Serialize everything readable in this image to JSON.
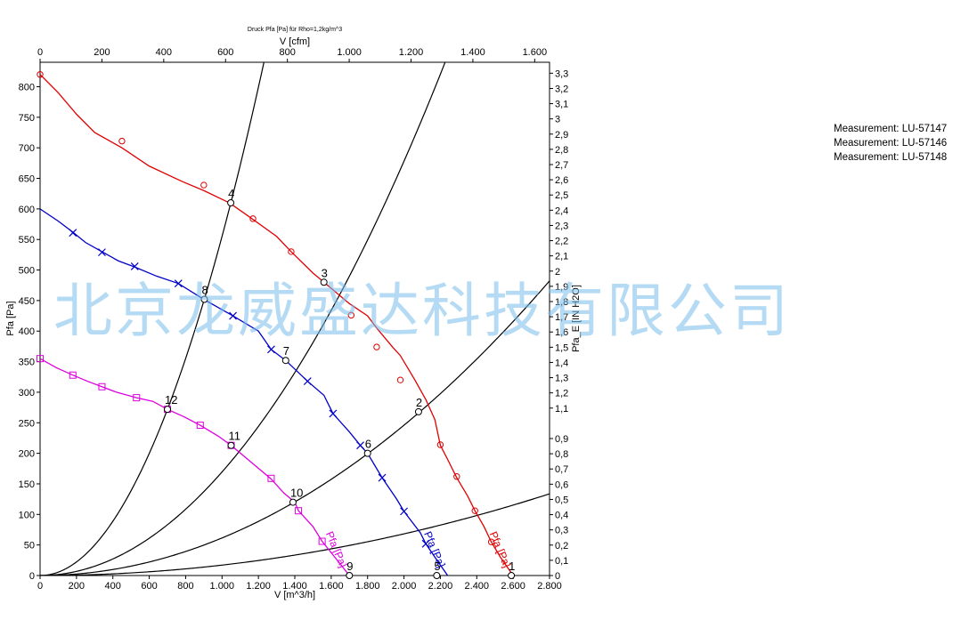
{
  "chart_data": {
    "type": "line",
    "title": "Druck Pfa [Pa] für Rho=1,2kg/m^3",
    "xlabel": "V [m^3/h]",
    "ylabel": "Pfa [Pa]",
    "x2label": "V [cfm]",
    "y2label": "Pfa_E [IN H2O]",
    "xlim": [
      0,
      2800
    ],
    "ylim": [
      0,
      840
    ],
    "x2lim": [
      0,
      1648
    ],
    "y2lim": [
      0,
      3.372
    ],
    "x_ticks": [
      0,
      200,
      400,
      600,
      800,
      1000,
      1200,
      1400,
      1600,
      1800,
      2000,
      2200,
      2400,
      2600,
      2800
    ],
    "x_tick_labels": [
      "0",
      "200",
      "400",
      "600",
      "800",
      "1.000",
      "1.200",
      "1.400",
      "1.600",
      "1.800",
      "2.000",
      "2.200",
      "2.400",
      "2.600",
      "2.800"
    ],
    "y_ticks": [
      0,
      50,
      100,
      150,
      200,
      250,
      300,
      350,
      400,
      450,
      500,
      550,
      600,
      650,
      700,
      750,
      800
    ],
    "x2_ticks": [
      0,
      200,
      400,
      600,
      800,
      1000,
      1200,
      1400,
      1600
    ],
    "x2_tick_labels": [
      "0",
      "200",
      "400",
      "600",
      "800",
      "1.000",
      "1.200",
      "1.400",
      "1.600"
    ],
    "y2_ticks": [
      0,
      0.1,
      0.2,
      0.3,
      0.4,
      0.5,
      0.6,
      0.7,
      0.8,
      0.9,
      1.1,
      1.2,
      1.3,
      1.4,
      1.5,
      1.6,
      1.7,
      1.8,
      1.9,
      2.0,
      2.1,
      2.2,
      2.3,
      2.4,
      2.5,
      2.6,
      2.7,
      2.8,
      2.9,
      3.0,
      3.1,
      3.2,
      3.3
    ],
    "y2_tick_labels": [
      "0",
      "0,1",
      "0,2",
      "0,3",
      "0,4",
      "0,5",
      "0,6",
      "0,7",
      "0,8",
      "0,9",
      "1,1",
      "1,2",
      "1,3",
      "1,4",
      "1,5",
      "1,6",
      "1,7",
      "1,8",
      "1,9",
      "2",
      "2,1",
      "2,2",
      "2,3",
      "2,4",
      "2,5",
      "2,6",
      "2,7",
      "2,8",
      "2,9",
      "3",
      "3,1",
      "3,2",
      "3,3"
    ],
    "grid": false,
    "series": [
      {
        "name": "Pfa [Pa]",
        "color": "#e00000",
        "marker": "circle",
        "line": [
          [
            0,
            820
          ],
          [
            100,
            790
          ],
          [
            200,
            755
          ],
          [
            300,
            725
          ],
          [
            450,
            700
          ],
          [
            600,
            670
          ],
          [
            780,
            645
          ],
          [
            900,
            630
          ],
          [
            1040,
            610
          ],
          [
            1160,
            585
          ],
          [
            1300,
            555
          ],
          [
            1380,
            530
          ],
          [
            1500,
            495
          ],
          [
            1560,
            480
          ],
          [
            1700,
            445
          ],
          [
            1800,
            425
          ],
          [
            1850,
            405
          ],
          [
            1940,
            373
          ],
          [
            1980,
            360
          ],
          [
            2060,
            320
          ],
          [
            2120,
            288
          ],
          [
            2170,
            255
          ],
          [
            2200,
            213
          ],
          [
            2240,
            190
          ],
          [
            2290,
            160
          ],
          [
            2350,
            130
          ],
          [
            2390,
            106
          ],
          [
            2440,
            80
          ],
          [
            2480,
            55
          ],
          [
            2530,
            30
          ],
          [
            2600,
            0
          ]
        ],
        "markers": [
          [
            0,
            820
          ],
          [
            450,
            711
          ],
          [
            900,
            639
          ],
          [
            1170,
            584
          ],
          [
            1380,
            530
          ],
          [
            1710,
            426
          ],
          [
            1850,
            374
          ],
          [
            1980,
            320
          ],
          [
            2200,
            214
          ],
          [
            2290,
            162
          ],
          [
            2390,
            106
          ],
          [
            2480,
            55
          ]
        ]
      },
      {
        "name": "Pfa [Pa]",
        "color": "#0000c8",
        "marker": "x",
        "line": [
          [
            0,
            600
          ],
          [
            100,
            580
          ],
          [
            180,
            562
          ],
          [
            250,
            545
          ],
          [
            340,
            530
          ],
          [
            430,
            515
          ],
          [
            520,
            505
          ],
          [
            640,
            490
          ],
          [
            760,
            478
          ],
          [
            900,
            452
          ],
          [
            1060,
            425
          ],
          [
            1200,
            400
          ],
          [
            1270,
            370
          ],
          [
            1350,
            352
          ],
          [
            1470,
            318
          ],
          [
            1560,
            295
          ],
          [
            1610,
            265
          ],
          [
            1700,
            235
          ],
          [
            1760,
            213
          ],
          [
            1800,
            200
          ],
          [
            1880,
            160
          ],
          [
            1960,
            125
          ],
          [
            2000,
            105
          ],
          [
            2090,
            70
          ],
          [
            2120,
            52
          ],
          [
            2170,
            30
          ],
          [
            2240,
            0
          ]
        ],
        "markers": [
          [
            180,
            561
          ],
          [
            340,
            529
          ],
          [
            520,
            506
          ],
          [
            760,
            478
          ],
          [
            1060,
            425
          ],
          [
            1270,
            370
          ],
          [
            1470,
            318
          ],
          [
            1610,
            265
          ],
          [
            1760,
            213
          ],
          [
            1880,
            160
          ],
          [
            2000,
            105
          ],
          [
            2120,
            52
          ]
        ]
      },
      {
        "name": "Pfa [Pa]",
        "color": "#dd00dd",
        "marker": "square",
        "line": [
          [
            0,
            355
          ],
          [
            90,
            340
          ],
          [
            180,
            328
          ],
          [
            260,
            318
          ],
          [
            340,
            309
          ],
          [
            420,
            300
          ],
          [
            530,
            291
          ],
          [
            620,
            285
          ],
          [
            700,
            272
          ],
          [
            790,
            260
          ],
          [
            880,
            246
          ],
          [
            980,
            228
          ],
          [
            1050,
            213
          ],
          [
            1150,
            188
          ],
          [
            1270,
            158
          ],
          [
            1340,
            135
          ],
          [
            1400,
            120
          ],
          [
            1420,
            106
          ],
          [
            1500,
            80
          ],
          [
            1550,
            56
          ],
          [
            1620,
            30
          ],
          [
            1700,
            0
          ]
        ],
        "markers": [
          [
            0,
            355
          ],
          [
            180,
            328
          ],
          [
            340,
            309
          ],
          [
            530,
            291
          ],
          [
            700,
            272
          ],
          [
            880,
            246
          ],
          [
            1050,
            213
          ],
          [
            1270,
            159
          ],
          [
            1420,
            106
          ],
          [
            1550,
            56
          ]
        ]
      }
    ],
    "system_curves": [
      {
        "k": 1.705e-05
      },
      {
        "k": 6.15e-05
      },
      {
        "k": 0.0001695
      },
      {
        "k": 0.000555
      }
    ],
    "operating_points": [
      {
        "label": "1",
        "x": 2590,
        "y": 0
      },
      {
        "label": "2",
        "x": 2080,
        "y": 268
      },
      {
        "label": "3",
        "x": 1560,
        "y": 480
      },
      {
        "label": "4",
        "x": 1048,
        "y": 610
      },
      {
        "label": "5",
        "x": 2180,
        "y": 0
      },
      {
        "label": "6",
        "x": 1800,
        "y": 200
      },
      {
        "label": "7",
        "x": 1350,
        "y": 352
      },
      {
        "label": "8",
        "x": 903,
        "y": 452
      },
      {
        "label": "9",
        "x": 1700,
        "y": 0
      },
      {
        "label": "10",
        "x": 1390,
        "y": 120
      },
      {
        "label": "11",
        "x": 1050,
        "y": 213
      },
      {
        "label": "12",
        "x": 700,
        "y": 272
      }
    ],
    "annotations": [
      "Pfa [Pa]"
    ],
    "legend": {
      "placement": "top-right",
      "entries": [
        "Measurement: LU-57147",
        "Measurement: LU-57146",
        "Measurement: LU-57148"
      ]
    }
  },
  "watermark": "北京龙威盛达科技有限公司"
}
